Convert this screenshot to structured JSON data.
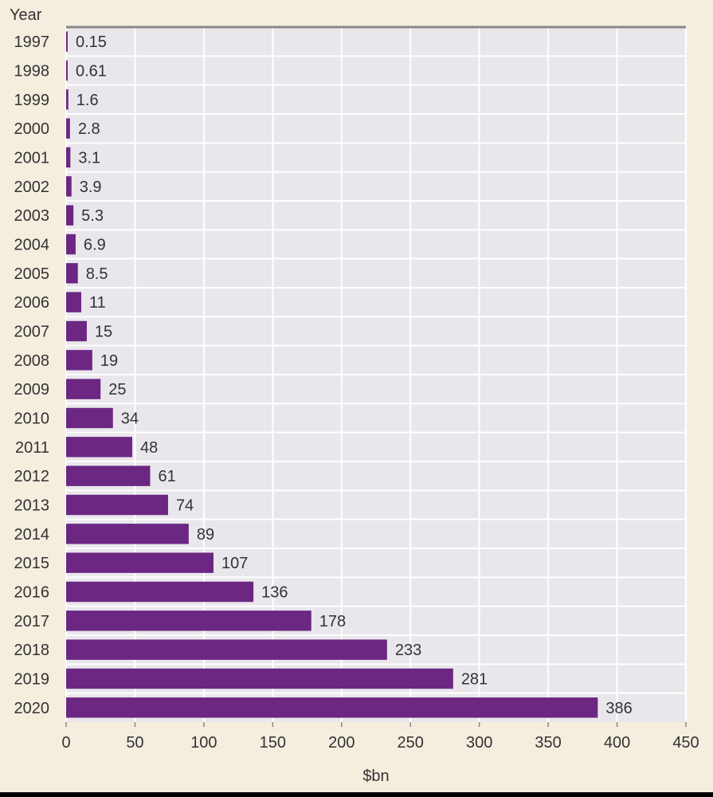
{
  "chart_data": {
    "type": "bar",
    "orientation": "horizontal",
    "ylabel": "Year",
    "xlabel": "$bn",
    "xlim": [
      0,
      450
    ],
    "xticks": [
      0,
      50,
      100,
      150,
      200,
      250,
      300,
      350,
      400,
      450
    ],
    "grid": true,
    "categories": [
      "1997",
      "1998",
      "1999",
      "2000",
      "2001",
      "2002",
      "2003",
      "2004",
      "2005",
      "2006",
      "2007",
      "2008",
      "2009",
      "2010",
      "2011",
      "2012",
      "2013",
      "2014",
      "2015",
      "2016",
      "2017",
      "2018",
      "2019",
      "2020"
    ],
    "values": [
      0.15,
      0.61,
      1.6,
      2.8,
      3.1,
      3.9,
      5.3,
      6.9,
      8.5,
      11,
      15,
      19,
      25,
      34,
      48,
      61,
      74,
      89,
      107,
      136,
      178,
      233,
      281,
      386
    ],
    "value_labels": [
      "0.15",
      "0.61",
      "1.6",
      "2.8",
      "3.1",
      "3.9",
      "5.3",
      "6.9",
      "8.5",
      "11",
      "15",
      "19",
      "25",
      "34",
      "48",
      "61",
      "74",
      "89",
      "107",
      "136",
      "178",
      "233",
      "281",
      "386"
    ],
    "colors": {
      "bar": "#6b2782",
      "plot_background": "#e9e7ec",
      "page_background": "#f5eedf",
      "grid": "#ffffff",
      "text": "#333333"
    }
  }
}
